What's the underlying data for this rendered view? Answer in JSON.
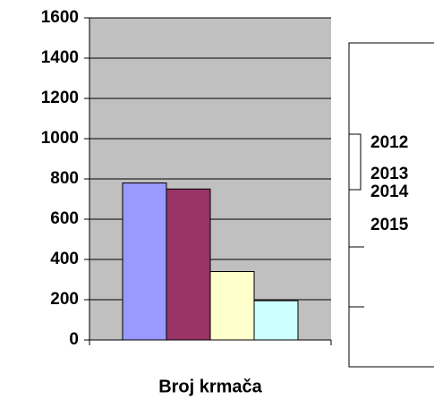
{
  "chart_data": {
    "type": "bar",
    "categories": [
      "Broj krmača"
    ],
    "series": [
      {
        "name": "2012",
        "color": "#9999ff",
        "values": [
          780
        ]
      },
      {
        "name": "2013",
        "color": "#993366",
        "values": [
          750
        ]
      },
      {
        "name": "2014",
        "color": "#ffffcc",
        "values": [
          340
        ]
      },
      {
        "name": "2015",
        "color": "#ccffff",
        "values": [
          195
        ]
      }
    ],
    "ylim": [
      0,
      1600
    ],
    "yticks": [
      0,
      200,
      400,
      600,
      800,
      1000,
      1200,
      1400,
      1600
    ],
    "grid": true,
    "legend": "right"
  }
}
